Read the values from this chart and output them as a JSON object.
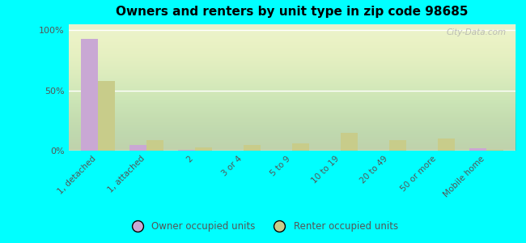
{
  "title": "Owners and renters by unit type in zip code 98685",
  "categories": [
    "1, detached",
    "1, attached",
    "2",
    "3 or 4",
    "5 to 9",
    "10 to 19",
    "20 to 49",
    "50 or more",
    "Mobile home"
  ],
  "owner_values": [
    93,
    5,
    1,
    0,
    0,
    0,
    0,
    0,
    2
  ],
  "renter_values": [
    58,
    9,
    3,
    5,
    6,
    15,
    9,
    10,
    1
  ],
  "owner_color": "#c9a8d4",
  "renter_color": "#c8cc8a",
  "background_color": "#00ffff",
  "plot_bg_color": "#dce8c0",
  "ylabel_ticks": [
    "0%",
    "50%",
    "100%"
  ],
  "ytick_vals": [
    0,
    50,
    100
  ],
  "ylim": [
    0,
    105
  ],
  "bar_width": 0.35,
  "legend_owner": "Owner occupied units",
  "legend_renter": "Renter occupied units",
  "watermark": "City-Data.com"
}
